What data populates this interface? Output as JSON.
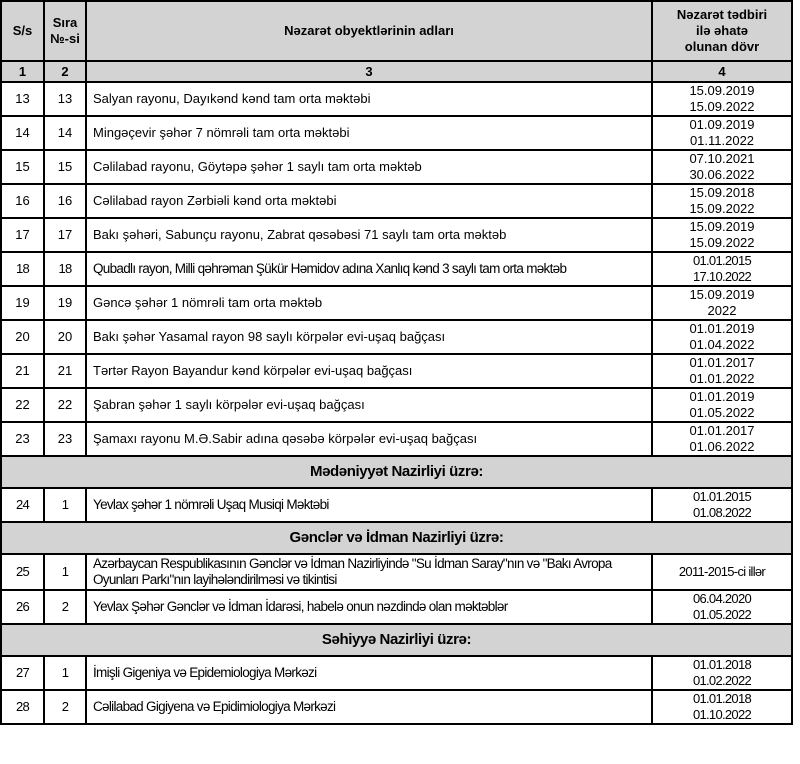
{
  "colors": {
    "header_bg": "#d3d3d3",
    "section_bg": "#d3d3d3",
    "border": "#000000",
    "page_bg": "#ffffff"
  },
  "table": {
    "header": {
      "col1": "S/s",
      "col2": "Sıra №-si",
      "col3": "Nəzarət obyektlərinin adları",
      "col4": "Nəzarət tədbiri ilə əhatə olunan dövr"
    },
    "column_numbers": [
      "1",
      "2",
      "3",
      "4"
    ],
    "rows": [
      {
        "type": "data",
        "ss": "13",
        "no": "13",
        "name": "Salyan rayonu, Dayıkənd kənd tam orta məktəbi",
        "period": [
          "15.09.2019",
          "15.09.2022"
        ]
      },
      {
        "type": "data",
        "ss": "14",
        "no": "14",
        "name": "Mingəçevir şəhər 7 nömrəli tam orta məktəbi",
        "period": [
          "01.09.2019",
          "01.11.2022"
        ]
      },
      {
        "type": "data",
        "ss": "15",
        "no": "15",
        "name": "Cəlilabad rayonu, Göytəpə şəhər 1 saylı tam orta məktəb",
        "period": [
          "07.10.2021",
          "30.06.2022"
        ]
      },
      {
        "type": "data",
        "ss": "16",
        "no": "16",
        "name": "Cəlilabad rayon Zərbiəli kənd orta məktəbi",
        "period": [
          "15.09.2018",
          "15.09.2022"
        ]
      },
      {
        "type": "data",
        "ss": "17",
        "no": "17",
        "name": "Bakı şəhəri, Sabunçu rayonu, Zabrat qəsəbəsi 71 saylı tam orta məktəb",
        "period": [
          "15.09.2019",
          "15.09.2022"
        ]
      },
      {
        "type": "data",
        "ss": "18",
        "no": "18",
        "narrow": true,
        "name": "Qubadlı rayon, Milli qəhrəman Şükür Həmidov adına Xanlıq kənd 3 saylı tam orta məktəb",
        "period": [
          "01.01.2015",
          "17.10.2022"
        ]
      },
      {
        "type": "data",
        "ss": "19",
        "no": "19",
        "name": "Gəncə şəhər 1 nömrəli tam orta məktəb",
        "period": [
          "15.09.2019",
          "2022"
        ]
      },
      {
        "type": "data",
        "ss": "20",
        "no": "20",
        "name": "Bakı şəhər Yasamal rayon 98 saylı körpələr evi-uşaq bağçası",
        "period": [
          "01.01.2019",
          "01.04.2022"
        ]
      },
      {
        "type": "data",
        "ss": "21",
        "no": "21",
        "name": "Tərtər Rayon Bayandur kənd körpələr evi-uşaq bağçası",
        "period": [
          "01.01.2017",
          "01.01.2022"
        ]
      },
      {
        "type": "data",
        "ss": "22",
        "no": "22",
        "name": "Şabran şəhər 1 saylı körpələr evi-uşaq bağçası",
        "period": [
          "01.01.2019",
          "01.05.2022"
        ]
      },
      {
        "type": "data",
        "ss": "23",
        "no": "23",
        "name": "Şamaxı rayonu M.Ə.Sabir adına qəsəbə körpələr evi-uşaq bağçası",
        "period": [
          "01.01.2017",
          "01.06.2022"
        ]
      },
      {
        "type": "section",
        "label": "Mədəniyyət Nazirliyi üzrə:"
      },
      {
        "type": "data",
        "ss": "24",
        "no": "1",
        "narrow": true,
        "name": "Yevlax şəhər 1 nömrəli Uşaq Musiqi Məktəbi",
        "period": [
          "01.01.2015",
          "01.08.2022"
        ]
      },
      {
        "type": "section",
        "label": "Gənclər və İdman Nazirliyi üzrə:"
      },
      {
        "type": "data",
        "ss": "25",
        "no": "1",
        "narrow": true,
        "name": "Azərbaycan Respublikasının Gənclər və İdman Nazirliyində \"Su İdman Saray\"nın və \"Bakı Avropa Oyunları Parkı\"nın layihələndirilməsi və tikintisi",
        "period": [
          "2011-2015-ci illər"
        ]
      },
      {
        "type": "data",
        "ss": "26",
        "no": "2",
        "narrow": true,
        "name": "Yevlax Şəhər Gənclər və İdman İdarəsi, habelə onun nəzdində olan məktəblər",
        "period": [
          "06.04.2020",
          "01.05.2022"
        ]
      },
      {
        "type": "section",
        "label": "Səhiyyə Nazirliyi üzrə:"
      },
      {
        "type": "data",
        "ss": "27",
        "no": "1",
        "narrow": true,
        "name": "İmişli Gigeniya və Epidemiologiya Mərkəzi",
        "period": [
          "01.01.2018",
          "01.02.2022"
        ]
      },
      {
        "type": "data",
        "ss": "28",
        "no": "2",
        "narrow": true,
        "name": "Cəlilabad Gigiyena və Epidimiologiya Mərkəzi",
        "period": [
          "01.01.2018",
          "01.10.2022"
        ]
      }
    ]
  }
}
